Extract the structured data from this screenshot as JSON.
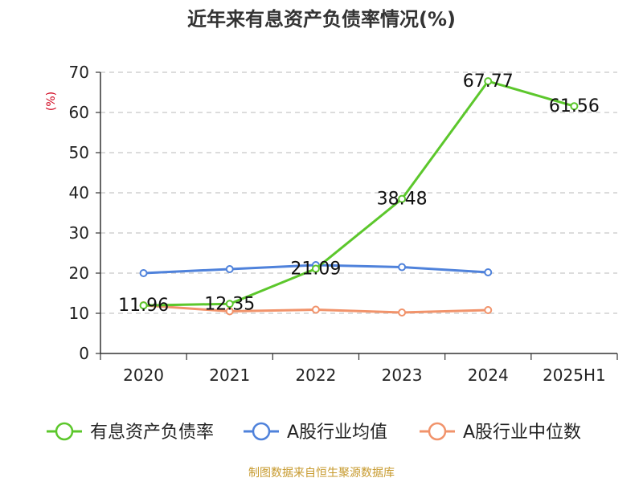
{
  "chart_data": {
    "type": "line",
    "title": "近年来有息资产负债率情况(%)",
    "ylabel": "(%)",
    "xlabel": "",
    "ylim": [
      0,
      70
    ],
    "yticks": [
      0,
      10,
      20,
      30,
      40,
      50,
      60,
      70
    ],
    "grid": true,
    "legend_position": "bottom",
    "categories": [
      "2020",
      "2021",
      "2022",
      "2023",
      "2024",
      "2025H1"
    ],
    "series": [
      {
        "name": "有息资产负债率",
        "color": "#5cc72c",
        "values": [
          11.96,
          12.35,
          21.09,
          38.48,
          67.77,
          61.56
        ],
        "labels": [
          "11.96",
          "12.35",
          "21.09",
          "38.48",
          "67.77",
          "61.56"
        ]
      },
      {
        "name": "A股行业均值",
        "color": "#4f82db",
        "values": [
          20.0,
          21.0,
          22.0,
          21.5,
          20.2,
          null
        ]
      },
      {
        "name": "A股行业中位数",
        "color": "#f1936b",
        "values": [
          12.0,
          10.5,
          10.9,
          10.2,
          10.8,
          null
        ]
      }
    ]
  },
  "footer": {
    "source": "制图数据来自恒生聚源数据库"
  }
}
